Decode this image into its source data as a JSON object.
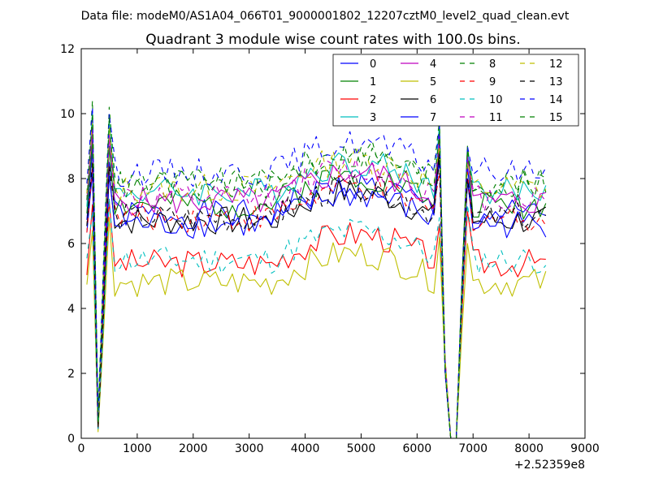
{
  "suptitle": "Data file: modeM0/AS1A04_066T01_9000001802_12207cztM0_level2_quad_clean.evt",
  "chart_data": {
    "type": "line",
    "title": "Quadrant 3 module wise count rates with 100.0s bins.",
    "xlabel": "",
    "ylabel": "",
    "x_offset_label": "+2.52359e8",
    "xlim": [
      0,
      9000
    ],
    "ylim": [
      0,
      12
    ],
    "x_ticks": [
      0,
      1000,
      2000,
      3000,
      4000,
      5000,
      6000,
      7000,
      8000,
      9000
    ],
    "y_ticks": [
      0,
      2,
      4,
      6,
      8,
      10,
      12
    ],
    "grid": false,
    "legend_position": "top-right",
    "legend_columns": 4,
    "gaps": [
      [
        300,
        450
      ],
      [
        6400,
        6900
      ]
    ],
    "series": [
      {
        "name": "0",
        "color": "#0000ff",
        "dash": "solid",
        "base": 6.9,
        "seed": 1,
        "dip": [
          8.9,
          0.4,
          8.5,
          8.8,
          0.0,
          8.4
        ]
      },
      {
        "name": "1",
        "color": "#008000",
        "dash": "solid",
        "base": 7.2,
        "seed": 2,
        "dip": [
          9.2,
          0.5,
          9.0,
          9.0,
          0.0,
          8.9
        ]
      },
      {
        "name": "2",
        "color": "#ff0000",
        "dash": "solid",
        "base": 5.4,
        "seed": 3,
        "dip": [
          7.2,
          0.3,
          7.3,
          6.6,
          0.0,
          7.0
        ]
      },
      {
        "name": "3",
        "color": "#00bfbf",
        "dash": "solid",
        "base": 7.6,
        "seed": 4,
        "dip": [
          10.1,
          0.6,
          9.8,
          9.7,
          0.0,
          8.8
        ]
      },
      {
        "name": "4",
        "color": "#bf00bf",
        "dash": "solid",
        "base": 7.3,
        "seed": 5,
        "dip": [
          9.6,
          0.4,
          9.3,
          9.4,
          0.0,
          8.6
        ]
      },
      {
        "name": "5",
        "color": "#bfbf00",
        "dash": "solid",
        "base": 4.8,
        "seed": 6,
        "dip": [
          6.4,
          0.2,
          6.8,
          6.2,
          0.0,
          6.0
        ]
      },
      {
        "name": "6",
        "color": "#000000",
        "dash": "solid",
        "base": 6.7,
        "seed": 7,
        "dip": [
          8.3,
          0.3,
          8.2,
          8.8,
          0.0,
          7.9
        ]
      },
      {
        "name": "7",
        "color": "#0000ff",
        "dash": "solid",
        "base": 6.6,
        "seed": 8,
        "dip": [
          8.2,
          0.3,
          8.1,
          8.6,
          0.0,
          8.0
        ]
      },
      {
        "name": "8",
        "color": "#008000",
        "dash": "dashed",
        "base": 7.9,
        "seed": 9,
        "dip": [
          10.4,
          0.6,
          10.2,
          9.8,
          0.0,
          9.0
        ]
      },
      {
        "name": "9",
        "color": "#ff0000",
        "dash": "dashed",
        "base": 6.8,
        "seed": 10,
        "dip": [
          8.4,
          0.3,
          8.4,
          8.2,
          0.0,
          8.2
        ]
      },
      {
        "name": "10",
        "color": "#00bfbf",
        "dash": "dashed",
        "base": 5.5,
        "seed": 11,
        "dip": [
          7.0,
          0.3,
          7.4,
          6.8,
          0.0,
          7.2
        ]
      },
      {
        "name": "11",
        "color": "#bf00bf",
        "dash": "dashed",
        "base": 7.4,
        "seed": 12,
        "dip": [
          9.5,
          0.5,
          9.4,
          9.2,
          0.0,
          8.7
        ]
      },
      {
        "name": "12",
        "color": "#bfbf00",
        "dash": "dashed",
        "base": 7.7,
        "seed": 13,
        "dip": [
          9.8,
          0.4,
          9.6,
          9.0,
          0.0,
          8.5
        ]
      },
      {
        "name": "13",
        "color": "#000000",
        "dash": "dashed",
        "base": 6.8,
        "seed": 14,
        "dip": [
          8.5,
          0.3,
          8.4,
          8.6,
          0.0,
          8.0
        ]
      },
      {
        "name": "14",
        "color": "#0000ff",
        "dash": "dashed",
        "base": 8.2,
        "seed": 15,
        "dip": [
          10.2,
          0.7,
          10.0,
          9.6,
          0.0,
          9.0
        ]
      },
      {
        "name": "15",
        "color": "#008000",
        "dash": "dashed",
        "base": 7.8,
        "seed": 16,
        "dip": [
          10.0,
          0.5,
          9.9,
          9.4,
          0.0,
          8.9
        ]
      }
    ]
  }
}
